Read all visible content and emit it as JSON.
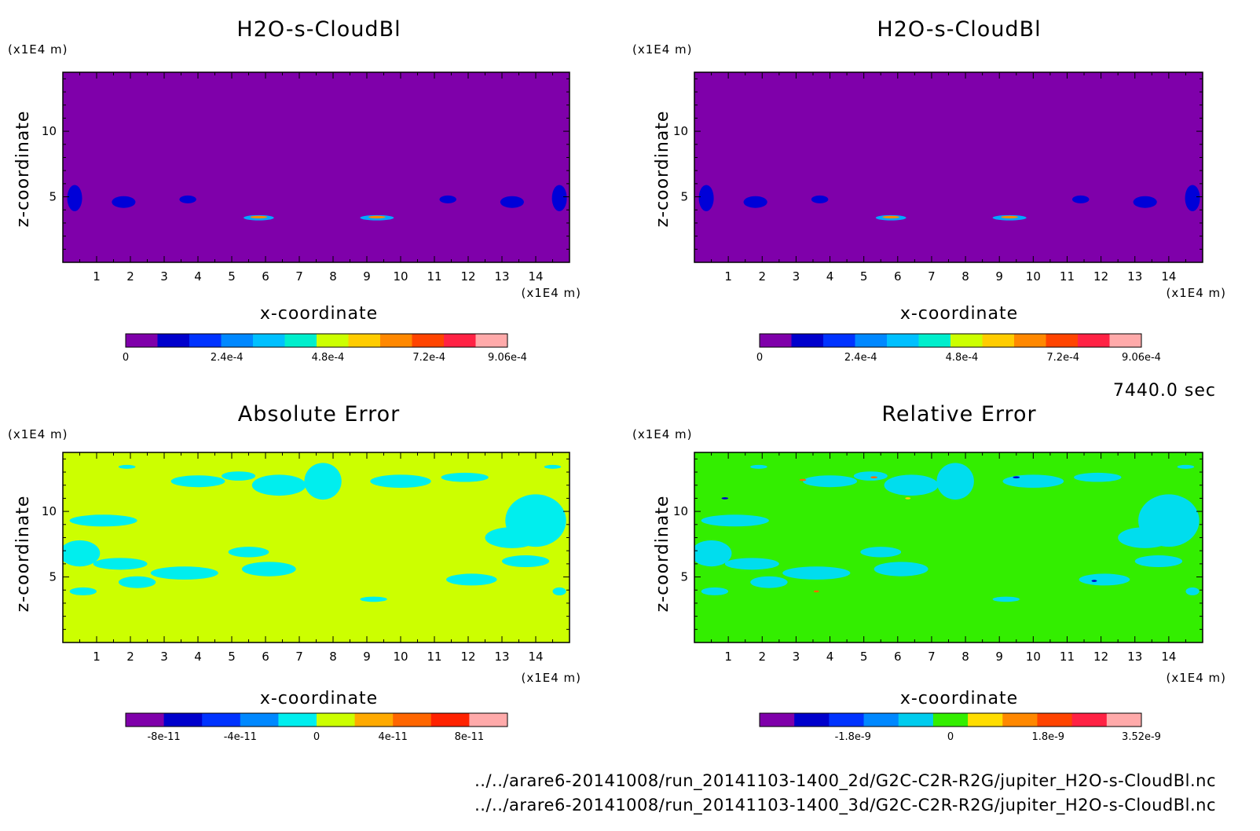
{
  "panel_meta": [
    {
      "title": "H2O-s-CloudBl",
      "zunit": "(x1E4 m)",
      "xunit": "(x1E4 m)",
      "xlabel": "x-coordinate",
      "ylabel": "z-coordinate"
    },
    {
      "title": "H2O-s-CloudBl",
      "zunit": "(x1E4 m)",
      "xunit": "(x1E4 m)",
      "xlabel": "x-coordinate",
      "ylabel": "z-coordinate"
    },
    {
      "title": "Absolute Error",
      "zunit": "(x1E4 m)",
      "xunit": "(x1E4 m)",
      "xlabel": "x-coordinate",
      "ylabel": "z-coordinate"
    },
    {
      "title": "Relative Error",
      "zunit": "(x1E4 m)",
      "xunit": "(x1E4 m)",
      "xlabel": "x-coordinate",
      "ylabel": "z-coordinate"
    }
  ],
  "time_label": "7440.0 sec",
  "file_paths": [
    "../../arare6-20141008/run_20141103-1400_2d/G2C-C2R-R2G/jupiter_H2O-s-CloudBl.nc",
    "../../arare6-20141008/run_20141103-1400_3d/G2C-C2R-R2G/jupiter_H2O-s-CloudBl.nc"
  ],
  "chart_data": [
    {
      "type": "heatmap",
      "title": "H2O-s-CloudBl",
      "xlabel": "x-coordinate",
      "ylabel": "z-coordinate",
      "xlim": [
        0,
        15.0
      ],
      "ylim": [
        0,
        14.5
      ],
      "x_ticks": [
        1,
        2,
        3,
        4,
        5,
        6,
        7,
        8,
        9,
        10,
        11,
        12,
        13,
        14
      ],
      "y_ticks": [
        5,
        10
      ],
      "background_color": "#7f00aa",
      "features": [
        {
          "x": 0.35,
          "z": 4.9,
          "rx": 0.22,
          "rz": 1.0,
          "color": "#0000d8"
        },
        {
          "x": 1.8,
          "z": 4.6,
          "rx": 0.35,
          "rz": 0.45,
          "color": "#0000d8"
        },
        {
          "x": 3.7,
          "z": 4.8,
          "rx": 0.25,
          "rz": 0.3,
          "color": "#0000d8"
        },
        {
          "x": 5.8,
          "z": 3.4,
          "rx": 0.45,
          "rz": 0.2,
          "color": "#00aaff"
        },
        {
          "x": 5.8,
          "z": 3.45,
          "rx": 0.25,
          "rz": 0.1,
          "color": "#ff8800"
        },
        {
          "x": 9.3,
          "z": 3.4,
          "rx": 0.5,
          "rz": 0.2,
          "color": "#00aaff"
        },
        {
          "x": 9.3,
          "z": 3.45,
          "rx": 0.25,
          "rz": 0.1,
          "color": "#ff8800"
        },
        {
          "x": 11.4,
          "z": 4.8,
          "rx": 0.25,
          "rz": 0.3,
          "color": "#0000d8"
        },
        {
          "x": 13.3,
          "z": 4.6,
          "rx": 0.35,
          "rz": 0.45,
          "color": "#0000d8"
        },
        {
          "x": 14.7,
          "z": 4.9,
          "rx": 0.22,
          "rz": 1.0,
          "color": "#0000d8"
        }
      ],
      "colorbar": {
        "colors": [
          "#7f00aa",
          "#0000cc",
          "#0033ff",
          "#0088ff",
          "#00c0ff",
          "#00eecc",
          "#ccff00",
          "#ffcc00",
          "#ff8800",
          "#ff4400",
          "#ff2244",
          "#ffaaaa"
        ],
        "tick_labels": [
          "0",
          "2.4e-4",
          "4.8e-4",
          "7.2e-4",
          "9.06e-4"
        ],
        "tick_values": [
          0,
          0.00024,
          0.00048,
          0.00072,
          0.000906
        ],
        "range": [
          0,
          0.000906
        ]
      }
    },
    {
      "type": "heatmap",
      "title": "H2O-s-CloudBl",
      "xlabel": "x-coordinate",
      "ylabel": "z-coordinate",
      "xlim": [
        0,
        15.0
      ],
      "ylim": [
        0,
        14.5
      ],
      "x_ticks": [
        1,
        2,
        3,
        4,
        5,
        6,
        7,
        8,
        9,
        10,
        11,
        12,
        13,
        14
      ],
      "y_ticks": [
        5,
        10
      ],
      "background_color": "#7f00aa",
      "features": [
        {
          "x": 0.35,
          "z": 4.9,
          "rx": 0.22,
          "rz": 1.0,
          "color": "#0000d8"
        },
        {
          "x": 1.8,
          "z": 4.6,
          "rx": 0.35,
          "rz": 0.45,
          "color": "#0000d8"
        },
        {
          "x": 3.7,
          "z": 4.8,
          "rx": 0.25,
          "rz": 0.3,
          "color": "#0000d8"
        },
        {
          "x": 5.8,
          "z": 3.4,
          "rx": 0.45,
          "rz": 0.2,
          "color": "#00aaff"
        },
        {
          "x": 5.8,
          "z": 3.45,
          "rx": 0.25,
          "rz": 0.1,
          "color": "#ff8800"
        },
        {
          "x": 9.3,
          "z": 3.4,
          "rx": 0.5,
          "rz": 0.2,
          "color": "#00aaff"
        },
        {
          "x": 9.3,
          "z": 3.45,
          "rx": 0.25,
          "rz": 0.1,
          "color": "#ff8800"
        },
        {
          "x": 11.4,
          "z": 4.8,
          "rx": 0.25,
          "rz": 0.3,
          "color": "#0000d8"
        },
        {
          "x": 13.3,
          "z": 4.6,
          "rx": 0.35,
          "rz": 0.45,
          "color": "#0000d8"
        },
        {
          "x": 14.7,
          "z": 4.9,
          "rx": 0.22,
          "rz": 1.0,
          "color": "#0000d8"
        }
      ],
      "colorbar": {
        "colors": [
          "#7f00aa",
          "#0000cc",
          "#0033ff",
          "#0088ff",
          "#00c0ff",
          "#00eecc",
          "#ccff00",
          "#ffcc00",
          "#ff8800",
          "#ff4400",
          "#ff2244",
          "#ffaaaa"
        ],
        "tick_labels": [
          "0",
          "2.4e-4",
          "4.8e-4",
          "7.2e-4",
          "9.06e-4"
        ],
        "tick_values": [
          0,
          0.00024,
          0.00048,
          0.00072,
          0.000906
        ],
        "range": [
          0,
          0.000906
        ]
      }
    },
    {
      "type": "heatmap",
      "title": "Absolute Error",
      "xlabel": "x-coordinate",
      "ylabel": "z-coordinate",
      "xlim": [
        0,
        15.0
      ],
      "ylim": [
        0,
        14.5
      ],
      "x_ticks": [
        1,
        2,
        3,
        4,
        5,
        6,
        7,
        8,
        9,
        10,
        11,
        12,
        13,
        14
      ],
      "y_ticks": [
        5,
        10
      ],
      "background_color": "#ccff00",
      "features": [
        {
          "x": 7.7,
          "z": 12.3,
          "rx": 0.55,
          "rz": 1.4,
          "color": "#00eeee"
        },
        {
          "x": 6.4,
          "z": 12.0,
          "rx": 0.8,
          "rz": 0.8,
          "color": "#00eeee"
        },
        {
          "x": 4.0,
          "z": 12.3,
          "rx": 0.8,
          "rz": 0.45,
          "color": "#00eeee"
        },
        {
          "x": 5.2,
          "z": 12.7,
          "rx": 0.5,
          "rz": 0.35,
          "color": "#00eeee"
        },
        {
          "x": 10.0,
          "z": 12.3,
          "rx": 0.9,
          "rz": 0.5,
          "color": "#00eeee"
        },
        {
          "x": 11.9,
          "z": 12.6,
          "rx": 0.7,
          "rz": 0.35,
          "color": "#00eeee"
        },
        {
          "x": 14.0,
          "z": 9.3,
          "rx": 0.9,
          "rz": 2.0,
          "color": "#00eeee"
        },
        {
          "x": 13.3,
          "z": 8.0,
          "rx": 0.8,
          "rz": 0.8,
          "color": "#00eeee"
        },
        {
          "x": 1.2,
          "z": 9.3,
          "rx": 1.0,
          "rz": 0.45,
          "color": "#00eeee"
        },
        {
          "x": 0.5,
          "z": 6.8,
          "rx": 0.6,
          "rz": 1.0,
          "color": "#00eeee"
        },
        {
          "x": 1.7,
          "z": 6.0,
          "rx": 0.8,
          "rz": 0.45,
          "color": "#00eeee"
        },
        {
          "x": 3.6,
          "z": 5.3,
          "rx": 1.0,
          "rz": 0.5,
          "color": "#00eeee"
        },
        {
          "x": 2.2,
          "z": 4.6,
          "rx": 0.55,
          "rz": 0.45,
          "color": "#00eeee"
        },
        {
          "x": 6.1,
          "z": 5.6,
          "rx": 0.8,
          "rz": 0.55,
          "color": "#00eeee"
        },
        {
          "x": 5.5,
          "z": 6.9,
          "rx": 0.6,
          "rz": 0.4,
          "color": "#00eeee"
        },
        {
          "x": 12.1,
          "z": 4.8,
          "rx": 0.75,
          "rz": 0.45,
          "color": "#00eeee"
        },
        {
          "x": 13.7,
          "z": 6.2,
          "rx": 0.7,
          "rz": 0.45,
          "color": "#00eeee"
        },
        {
          "x": 9.2,
          "z": 3.3,
          "rx": 0.4,
          "rz": 0.2,
          "color": "#00eeee"
        },
        {
          "x": 0.6,
          "z": 3.9,
          "rx": 0.4,
          "rz": 0.3,
          "color": "#00eeee"
        },
        {
          "x": 14.7,
          "z": 3.9,
          "rx": 0.2,
          "rz": 0.3,
          "color": "#00eeee"
        },
        {
          "x": 1.9,
          "z": 13.4,
          "rx": 0.25,
          "rz": 0.15,
          "color": "#00eeee"
        },
        {
          "x": 14.5,
          "z": 13.4,
          "rx": 0.25,
          "rz": 0.15,
          "color": "#00eeee"
        }
      ],
      "colorbar": {
        "colors": [
          "#7f00aa",
          "#0000cc",
          "#0033ff",
          "#0088ff",
          "#00eeee",
          "#ccff00",
          "#ffaa00",
          "#ff6600",
          "#ff2200",
          "#ffaaaa"
        ],
        "tick_labels": [
          "-8e-11",
          "-4e-11",
          "0",
          "4e-11",
          "8e-11"
        ],
        "tick_values": [
          -8e-11,
          -4e-11,
          0,
          4e-11,
          8e-11
        ],
        "range": [
          -1e-10,
          1e-10
        ]
      }
    },
    {
      "type": "heatmap",
      "title": "Relative Error",
      "xlabel": "x-coordinate",
      "ylabel": "z-coordinate",
      "xlim": [
        0,
        15.0
      ],
      "ylim": [
        0,
        14.5
      ],
      "x_ticks": [
        1,
        2,
        3,
        4,
        5,
        6,
        7,
        8,
        9,
        10,
        11,
        12,
        13,
        14
      ],
      "y_ticks": [
        5,
        10
      ],
      "background_color": "#33ee00",
      "features": [
        {
          "x": 7.7,
          "z": 12.3,
          "rx": 0.55,
          "rz": 1.4,
          "color": "#00ddee"
        },
        {
          "x": 6.4,
          "z": 12.0,
          "rx": 0.8,
          "rz": 0.8,
          "color": "#00ddee"
        },
        {
          "x": 4.0,
          "z": 12.3,
          "rx": 0.8,
          "rz": 0.45,
          "color": "#00ddee"
        },
        {
          "x": 5.2,
          "z": 12.7,
          "rx": 0.5,
          "rz": 0.35,
          "color": "#00ddee"
        },
        {
          "x": 10.0,
          "z": 12.3,
          "rx": 0.9,
          "rz": 0.5,
          "color": "#00ddee"
        },
        {
          "x": 11.9,
          "z": 12.6,
          "rx": 0.7,
          "rz": 0.35,
          "color": "#00ddee"
        },
        {
          "x": 14.0,
          "z": 9.3,
          "rx": 0.9,
          "rz": 2.0,
          "color": "#00ddee"
        },
        {
          "x": 13.3,
          "z": 8.0,
          "rx": 0.8,
          "rz": 0.8,
          "color": "#00ddee"
        },
        {
          "x": 1.2,
          "z": 9.3,
          "rx": 1.0,
          "rz": 0.45,
          "color": "#00ddee"
        },
        {
          "x": 0.5,
          "z": 6.8,
          "rx": 0.6,
          "rz": 1.0,
          "color": "#00ddee"
        },
        {
          "x": 1.7,
          "z": 6.0,
          "rx": 0.8,
          "rz": 0.45,
          "color": "#00ddee"
        },
        {
          "x": 3.6,
          "z": 5.3,
          "rx": 1.0,
          "rz": 0.5,
          "color": "#00ddee"
        },
        {
          "x": 2.2,
          "z": 4.6,
          "rx": 0.55,
          "rz": 0.45,
          "color": "#00ddee"
        },
        {
          "x": 6.1,
          "z": 5.6,
          "rx": 0.8,
          "rz": 0.55,
          "color": "#00ddee"
        },
        {
          "x": 5.5,
          "z": 6.9,
          "rx": 0.6,
          "rz": 0.4,
          "color": "#00ddee"
        },
        {
          "x": 12.1,
          "z": 4.8,
          "rx": 0.75,
          "rz": 0.45,
          "color": "#00ddee"
        },
        {
          "x": 13.7,
          "z": 6.2,
          "rx": 0.7,
          "rz": 0.45,
          "color": "#00ddee"
        },
        {
          "x": 9.2,
          "z": 3.3,
          "rx": 0.4,
          "rz": 0.2,
          "color": "#00ddee"
        },
        {
          "x": 0.6,
          "z": 3.9,
          "rx": 0.4,
          "rz": 0.3,
          "color": "#00ddee"
        },
        {
          "x": 14.7,
          "z": 3.9,
          "rx": 0.2,
          "rz": 0.3,
          "color": "#00ddee"
        },
        {
          "x": 1.9,
          "z": 13.4,
          "rx": 0.25,
          "rz": 0.15,
          "color": "#00ddee"
        },
        {
          "x": 14.5,
          "z": 13.4,
          "rx": 0.25,
          "rz": 0.15,
          "color": "#00ddee"
        },
        {
          "x": 3.2,
          "z": 12.4,
          "rx": 0.1,
          "rz": 0.08,
          "color": "#ff6600"
        },
        {
          "x": 5.3,
          "z": 12.6,
          "rx": 0.1,
          "rz": 0.08,
          "color": "#ff6600"
        },
        {
          "x": 6.3,
          "z": 11.0,
          "rx": 0.08,
          "rz": 0.08,
          "color": "#ffcc00"
        },
        {
          "x": 0.9,
          "z": 11.0,
          "rx": 0.1,
          "rz": 0.08,
          "color": "#0000cc"
        },
        {
          "x": 9.5,
          "z": 12.6,
          "rx": 0.1,
          "rz": 0.08,
          "color": "#0000cc"
        },
        {
          "x": 11.8,
          "z": 4.7,
          "rx": 0.08,
          "rz": 0.08,
          "color": "#0000cc"
        },
        {
          "x": 3.6,
          "z": 3.9,
          "rx": 0.08,
          "rz": 0.08,
          "color": "#ff6600"
        }
      ],
      "colorbar": {
        "colors": [
          "#7f00aa",
          "#0000cc",
          "#0033ff",
          "#0088ff",
          "#00ccee",
          "#33ee00",
          "#ffdd00",
          "#ff8800",
          "#ff4400",
          "#ff2244",
          "#ffaaaa"
        ],
        "tick_labels": [
          "-1.8e-9",
          "0",
          "1.8e-9",
          "3.52e-9"
        ],
        "tick_values": [
          -1.8e-09,
          0,
          1.8e-09,
          3.52e-09
        ],
        "range": [
          -3.52e-09,
          3.52e-09
        ]
      }
    }
  ]
}
